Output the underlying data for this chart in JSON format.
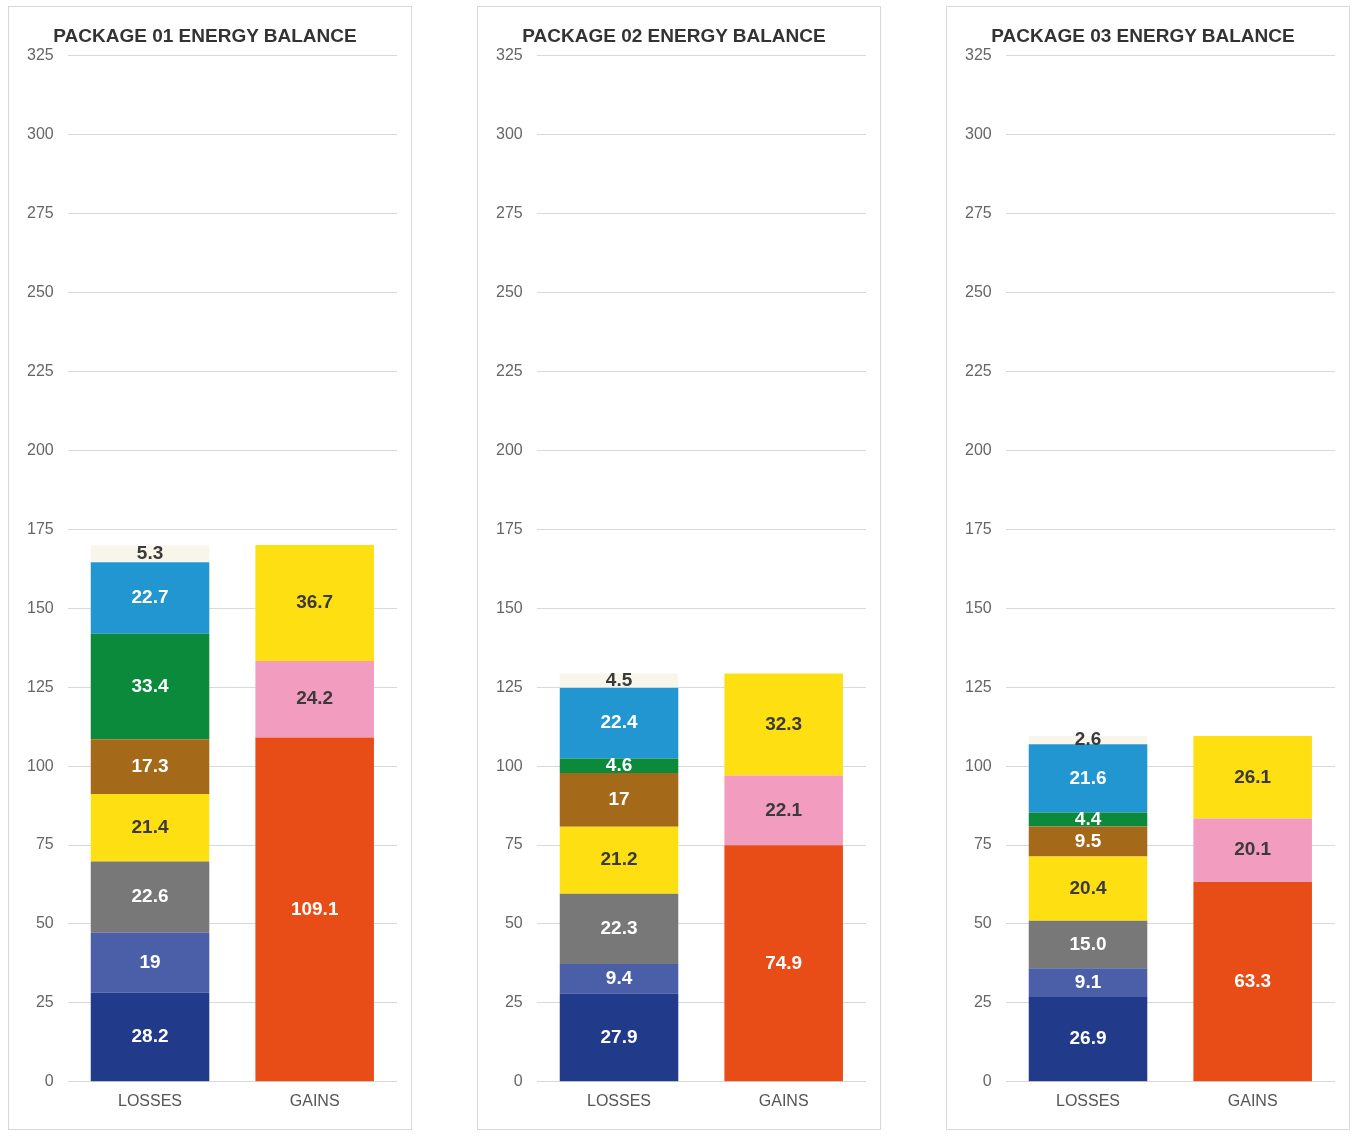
{
  "chart_data": [
    {
      "type": "bar",
      "title": "PACKAGE 01 ENERGY BALANCE",
      "categories": [
        "LOSSES",
        "GAINS"
      ],
      "stacked": true,
      "ylim": [
        0,
        325
      ],
      "yticks": [
        0,
        25,
        50,
        75,
        100,
        125,
        150,
        175,
        200,
        225,
        250,
        275,
        300,
        325
      ],
      "grid": "y",
      "series": [
        {
          "color": "#213a8a",
          "values": [
            28.2,
            null
          ],
          "value_labels": [
            "28.2",
            null
          ]
        },
        {
          "color": "#4b5ea8",
          "values": [
            19,
            null
          ],
          "value_labels": [
            "19",
            null
          ]
        },
        {
          "color": "#787878",
          "values": [
            22.6,
            null
          ],
          "value_labels": [
            "22.6",
            null
          ]
        },
        {
          "color": "#fddf12",
          "values": [
            21.4,
            null
          ],
          "value_labels": [
            "21.4",
            null
          ]
        },
        {
          "color": "#a5691a",
          "values": [
            17.3,
            null
          ],
          "value_labels": [
            "17.3",
            null
          ]
        },
        {
          "color": "#0a8a3a",
          "values": [
            33.4,
            null
          ],
          "value_labels": [
            "33.4",
            null
          ]
        },
        {
          "color": "#2196d0",
          "values": [
            22.7,
            null
          ],
          "value_labels": [
            "22.7",
            null
          ]
        },
        {
          "color": "#f8f6ea",
          "values": [
            5.3,
            null
          ],
          "value_labels": [
            "5.3",
            null
          ]
        },
        {
          "color": "#e84c17",
          "values": [
            null,
            109.1
          ],
          "value_labels": [
            null,
            "109.1"
          ]
        },
        {
          "color": "#f29cc0",
          "values": [
            null,
            24.2
          ],
          "value_labels": [
            null,
            "24.2"
          ]
        },
        {
          "color": "#fddf12",
          "values": [
            null,
            36.7
          ],
          "value_labels": [
            null,
            "36.7"
          ]
        }
      ]
    },
    {
      "type": "bar",
      "title": "PACKAGE 02 ENERGY BALANCE",
      "categories": [
        "LOSSES",
        "GAINS"
      ],
      "stacked": true,
      "ylim": [
        0,
        325
      ],
      "yticks": [
        0,
        25,
        50,
        75,
        100,
        125,
        150,
        175,
        200,
        225,
        250,
        275,
        300,
        325
      ],
      "grid": "y",
      "series": [
        {
          "color": "#213a8a",
          "values": [
            27.9,
            null
          ],
          "value_labels": [
            "27.9",
            null
          ]
        },
        {
          "color": "#4b5ea8",
          "values": [
            9.4,
            null
          ],
          "value_labels": [
            "9.4",
            null
          ]
        },
        {
          "color": "#787878",
          "values": [
            22.3,
            null
          ],
          "value_labels": [
            "22.3",
            null
          ]
        },
        {
          "color": "#fddf12",
          "values": [
            21.2,
            null
          ],
          "value_labels": [
            "21.2",
            null
          ]
        },
        {
          "color": "#a5691a",
          "values": [
            17,
            null
          ],
          "value_labels": [
            "17",
            null
          ]
        },
        {
          "color": "#0a8a3a",
          "values": [
            4.6,
            null
          ],
          "value_labels": [
            "4.6",
            null
          ]
        },
        {
          "color": "#2196d0",
          "values": [
            22.4,
            null
          ],
          "value_labels": [
            "22.4",
            null
          ]
        },
        {
          "color": "#f8f6ea",
          "values": [
            4.5,
            null
          ],
          "value_labels": [
            "4.5",
            null
          ]
        },
        {
          "color": "#e84c17",
          "values": [
            null,
            74.9
          ],
          "value_labels": [
            null,
            "74.9"
          ]
        },
        {
          "color": "#f29cc0",
          "values": [
            null,
            22.1
          ],
          "value_labels": [
            null,
            "22.1"
          ]
        },
        {
          "color": "#fddf12",
          "values": [
            null,
            32.3
          ],
          "value_labels": [
            null,
            "32.3"
          ]
        }
      ]
    },
    {
      "type": "bar",
      "title": "PACKAGE 03 ENERGY BALANCE",
      "categories": [
        "LOSSES",
        "GAINS"
      ],
      "stacked": true,
      "ylim": [
        0,
        325
      ],
      "yticks": [
        0,
        25,
        50,
        75,
        100,
        125,
        150,
        175,
        200,
        225,
        250,
        275,
        300,
        325
      ],
      "grid": "y",
      "series": [
        {
          "color": "#213a8a",
          "values": [
            26.9,
            null
          ],
          "value_labels": [
            "26.9",
            null
          ]
        },
        {
          "color": "#4b5ea8",
          "values": [
            9.1,
            null
          ],
          "value_labels": [
            "9.1",
            null
          ]
        },
        {
          "color": "#787878",
          "values": [
            15.0,
            null
          ],
          "value_labels": [
            "15.0",
            null
          ]
        },
        {
          "color": "#fddf12",
          "values": [
            20.4,
            null
          ],
          "value_labels": [
            "20.4",
            null
          ]
        },
        {
          "color": "#a5691a",
          "values": [
            9.5,
            null
          ],
          "value_labels": [
            "9.5",
            null
          ]
        },
        {
          "color": "#0a8a3a",
          "values": [
            4.4,
            null
          ],
          "value_labels": [
            "4.4",
            null
          ]
        },
        {
          "color": "#2196d0",
          "values": [
            21.6,
            null
          ],
          "value_labels": [
            "21.6",
            null
          ]
        },
        {
          "color": "#f8f6ea",
          "values": [
            2.6,
            null
          ],
          "value_labels": [
            "2.6",
            null
          ]
        },
        {
          "color": "#e84c17",
          "values": [
            null,
            63.3
          ],
          "value_labels": [
            null,
            "63.3"
          ]
        },
        {
          "color": "#f29cc0",
          "values": [
            null,
            20.1
          ],
          "value_labels": [
            null,
            "20.1"
          ]
        },
        {
          "color": "#fddf12",
          "values": [
            null,
            26.1
          ],
          "value_labels": [
            null,
            "26.1"
          ]
        }
      ]
    }
  ]
}
